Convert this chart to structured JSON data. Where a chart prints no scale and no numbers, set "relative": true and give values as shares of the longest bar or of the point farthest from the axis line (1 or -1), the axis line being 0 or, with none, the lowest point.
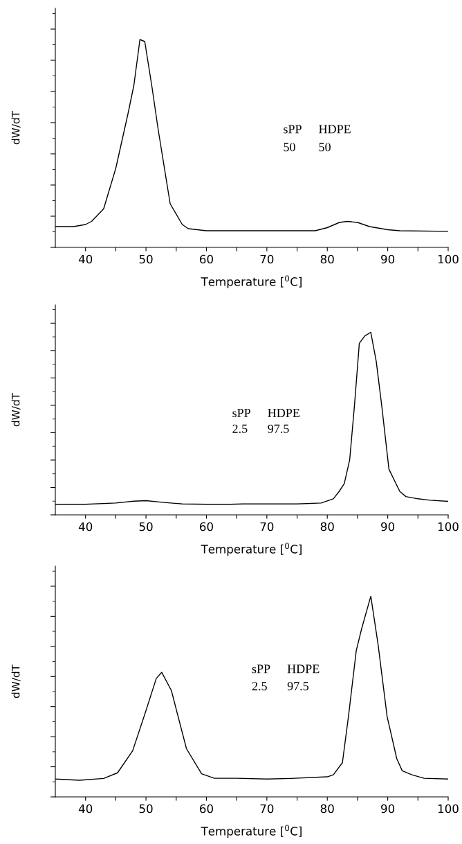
{
  "chart_data": [
    {
      "type": "line",
      "relative": true,
      "tick_labels": "x",
      "xlabel": "Temperature [$^{0}$C]",
      "ylabel": "dW/dT",
      "xlim": [
        35,
        100
      ],
      "xticks": [
        40,
        {
          "value": 45,
          "label": null
        },
        50,
        {
          "value": 55,
          "label": null
        },
        60,
        {
          "value": 65,
          "label": null
        },
        70,
        {
          "value": 75,
          "label": null
        },
        80,
        {
          "value": 85,
          "label": null
        },
        90,
        {
          "value": 95,
          "label": null
        },
        100
      ],
      "annotations": [
        "sPP",
        "HDPE",
        "50",
        "50"
      ],
      "grid": false,
      "legend": false,
      "marker": "none",
      "line_style": "solid",
      "series": [
        {
          "color": "#000000",
          "x": [
            35,
            38,
            40,
            41,
            43,
            45,
            47,
            48,
            49,
            49.8,
            51,
            52,
            54,
            56,
            57,
            60,
            65,
            75,
            78,
            80,
            82,
            83.3,
            85,
            87,
            90,
            92,
            100
          ],
          "values": [
            0.1,
            0.1,
            0.11,
            0.125,
            0.186,
            0.38,
            0.64,
            0.78,
            1.0,
            0.99,
            0.77,
            0.57,
            0.21,
            0.11,
            0.09,
            0.08,
            0.08,
            0.08,
            0.08,
            0.095,
            0.12,
            0.125,
            0.12,
            0.1,
            0.085,
            0.08,
            0.077
          ]
        }
      ]
    },
    {
      "type": "line",
      "relative": true,
      "tick_labels": "x",
      "xlabel": "Temperature [$^{0}$C]",
      "ylabel": "dW/dT",
      "xlim": [
        35,
        100
      ],
      "xticks": [
        40,
        {
          "value": 45,
          "label": null
        },
        50,
        {
          "value": 55,
          "label": null
        },
        60,
        {
          "value": 65,
          "label": null
        },
        70,
        {
          "value": 75,
          "label": null
        },
        80,
        {
          "value": 85,
          "label": null
        },
        90,
        {
          "value": 95,
          "label": null
        },
        100
      ],
      "annotations": [
        "sPP",
        "HDPE",
        "2.5",
        "97.5"
      ],
      "grid": false,
      "legend": false,
      "marker": "none",
      "line_style": "solid",
      "series": [
        {
          "color": "#000000",
          "x": [
            35,
            40,
            45,
            48,
            50,
            53,
            56,
            60,
            64,
            66,
            75,
            79,
            81,
            82,
            82.8,
            83.7,
            84.5,
            85.3,
            86.2,
            87.2,
            88.1,
            89,
            90.2,
            92,
            93,
            95,
            97,
            100
          ],
          "values": [
            0.058,
            0.058,
            0.065,
            0.075,
            0.078,
            0.068,
            0.06,
            0.058,
            0.058,
            0.06,
            0.06,
            0.065,
            0.088,
            0.13,
            0.17,
            0.3,
            0.6,
            0.94,
            0.98,
            1.0,
            0.84,
            0.6,
            0.25,
            0.128,
            0.1,
            0.088,
            0.08,
            0.074
          ]
        }
      ]
    },
    {
      "type": "line",
      "relative": true,
      "tick_labels": "x",
      "xlabel": "Temperature [$^{0}$C]",
      "ylabel": "dW/dT",
      "xlim": [
        35,
        100
      ],
      "xticks": [
        40,
        {
          "value": 45,
          "label": null
        },
        50,
        {
          "value": 55,
          "label": null
        },
        60,
        {
          "value": 65,
          "label": null
        },
        70,
        {
          "value": 75,
          "label": null
        },
        80,
        {
          "value": 85,
          "label": null
        },
        90,
        {
          "value": 95,
          "label": null
        },
        100
      ],
      "annotations": [
        "sPP",
        "HDPE",
        "2.5",
        "97.5"
      ],
      "grid": false,
      "legend": false,
      "marker": "none",
      "line_style": "solid",
      "series": [
        {
          "color": "#000000",
          "x": [
            35,
            39,
            43,
            45.3,
            47.8,
            50,
            51.7,
            52.6,
            54.2,
            56.7,
            59.2,
            61.3,
            65,
            70,
            74,
            80,
            81,
            82.5,
            83.5,
            84.8,
            85.7,
            87.2,
            88.4,
            89.9,
            91.5,
            92.4,
            94,
            96,
            100
          ],
          "values": [
            0.089,
            0.083,
            0.092,
            0.12,
            0.23,
            0.43,
            0.59,
            0.621,
            0.53,
            0.24,
            0.115,
            0.093,
            0.093,
            0.089,
            0.092,
            0.1,
            0.11,
            0.17,
            0.4,
            0.73,
            0.84,
            1.0,
            0.76,
            0.4,
            0.19,
            0.13,
            0.11,
            0.093,
            0.089
          ]
        }
      ]
    }
  ]
}
